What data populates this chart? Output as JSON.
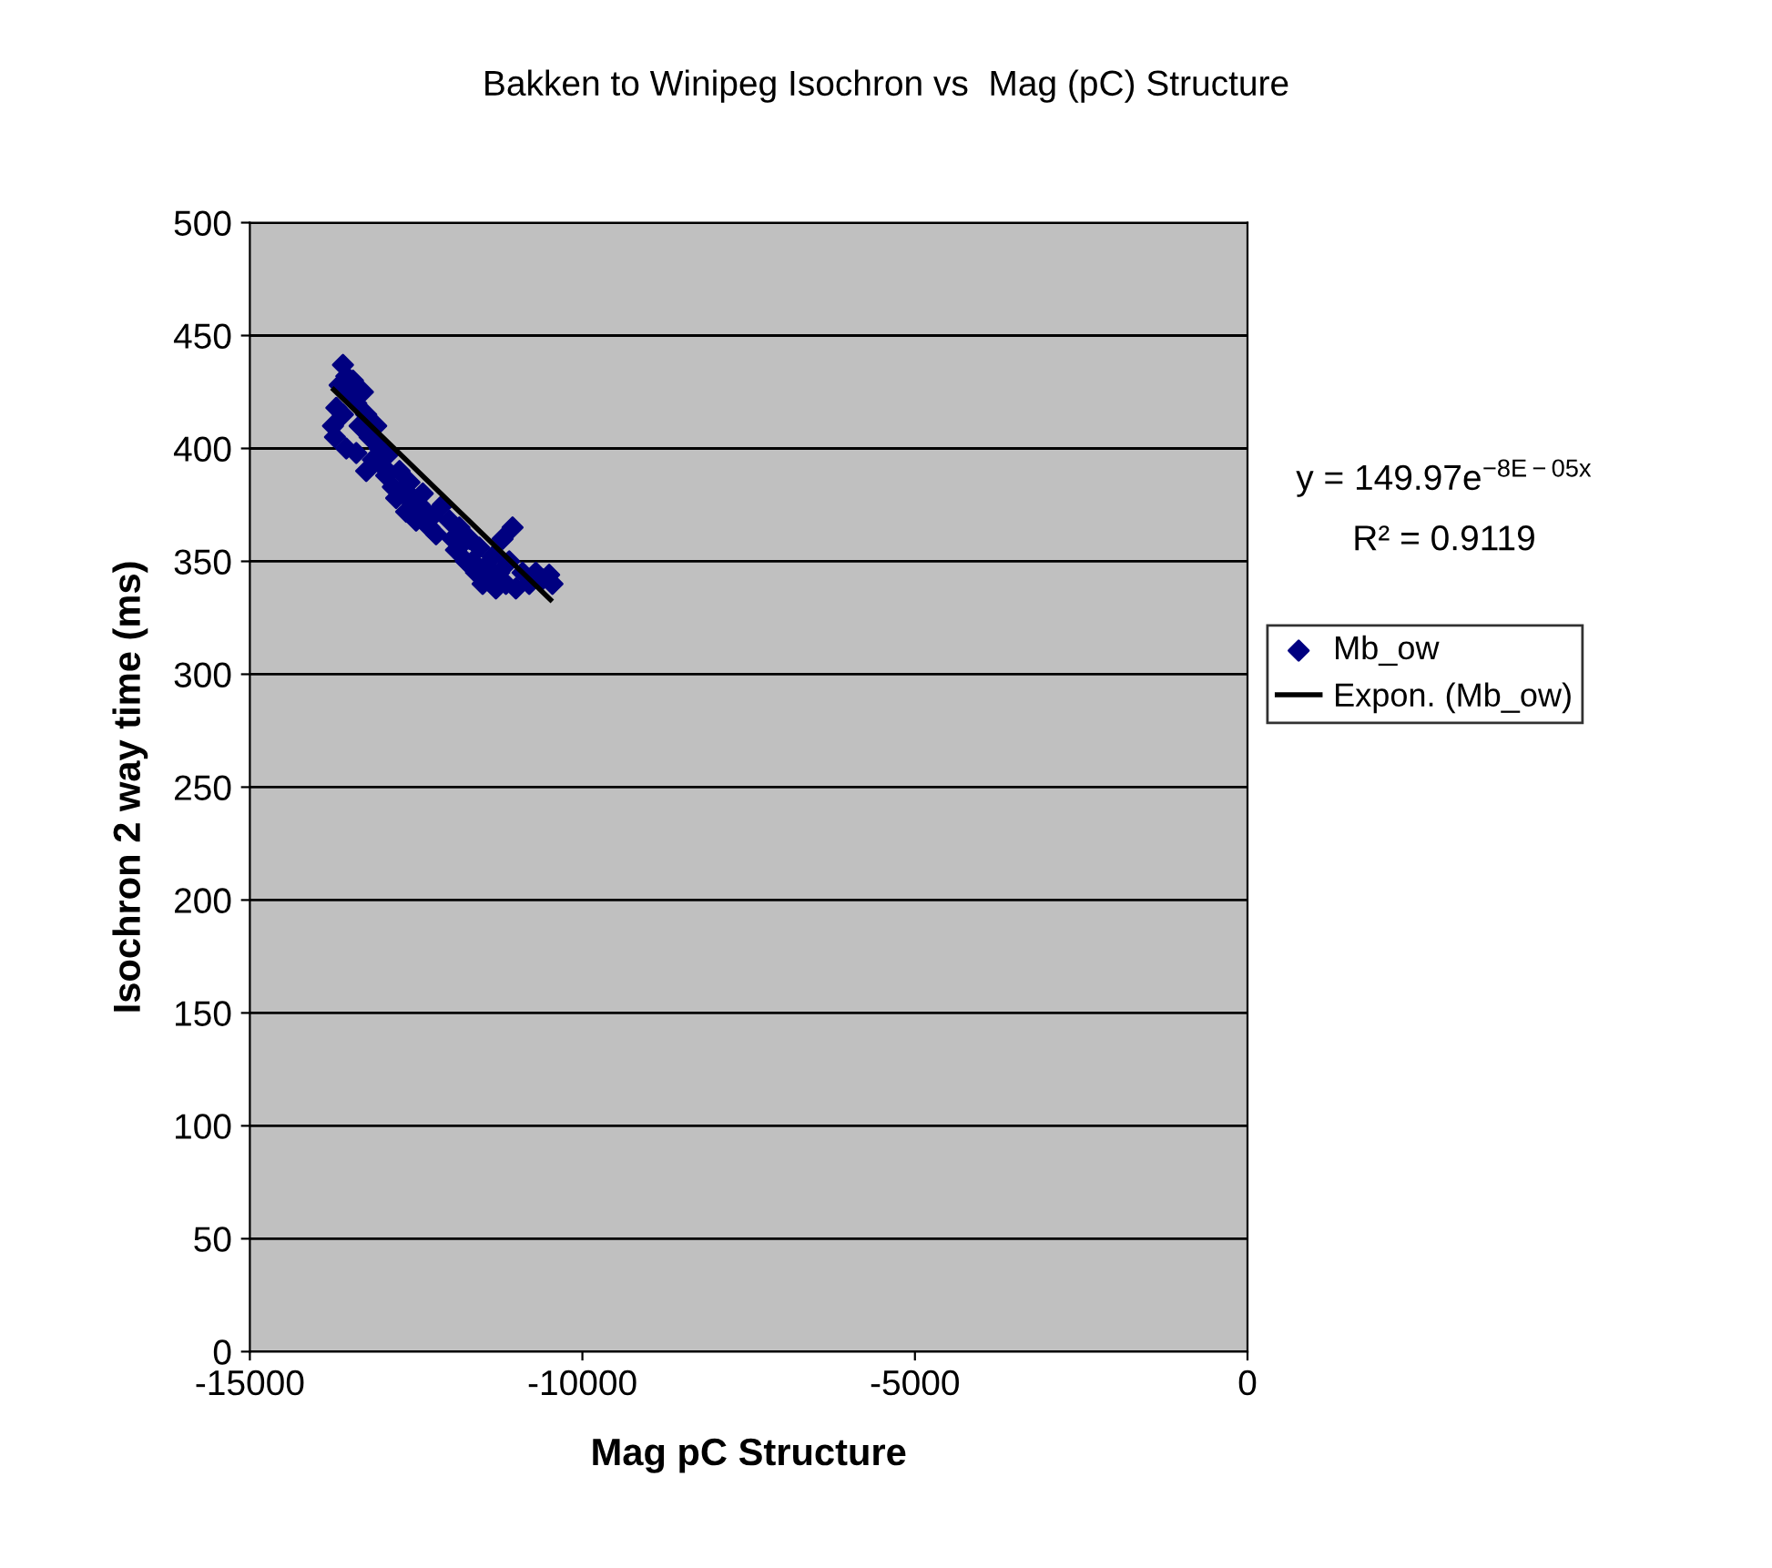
{
  "chart_data": {
    "type": "scatter",
    "title": "Bakken to Winipeg Isochron vs  Mag (pC) Structure",
    "xlabel": "Mag pC Structure",
    "ylabel": "Isochron 2 way time (ms)",
    "xlim": [
      -15000,
      0
    ],
    "xticks": [
      -15000,
      -10000,
      -5000,
      0
    ],
    "ylim": [
      0,
      500
    ],
    "yticks": [
      0,
      50,
      100,
      150,
      200,
      250,
      300,
      350,
      400,
      450,
      500
    ],
    "grid": "y",
    "legend": "right",
    "marker": "diamond",
    "annotations": [
      "y = 149.97e$^{−8E−05x}$",
      "R² = 0.9119"
    ],
    "series": [
      {
        "name": "Mb_ow",
        "color": "#000080",
        "x": [
          -13750,
          -13720,
          -13700,
          -13650,
          -13600,
          -13550,
          -13500,
          -13600,
          -13450,
          -13400,
          -13350,
          -13300,
          -13250,
          -13550,
          -13400,
          -13200,
          -13150,
          -13100,
          -13050,
          -13000,
          -12950,
          -12900,
          -13250,
          -12850,
          -12800,
          -12750,
          -12700,
          -12650,
          -12600,
          -12550,
          -12500,
          -12450,
          -12400,
          -12350,
          -12300,
          -12250,
          -12200,
          -12100,
          -12000,
          -11950,
          -11900,
          -11850,
          -11800,
          -11750,
          -11700,
          -11650,
          -11600,
          -11550,
          -11500,
          -11450,
          -11400,
          -11350,
          -11300,
          -11250,
          -11200,
          -11150,
          -11100,
          -11050,
          -11000,
          -10900,
          -10800,
          -10700,
          -10600,
          -10500,
          -10450
        ],
        "values": [
          410,
          405,
          418,
          428,
          437,
          432,
          425,
          415,
          430,
          420,
          410,
          425,
          415,
          400,
          398,
          405,
          395,
          410,
          400,
          392,
          388,
          398,
          390,
          383,
          378,
          390,
          380,
          372,
          385,
          378,
          368,
          375,
          380,
          372,
          365,
          370,
          362,
          375,
          368,
          360,
          355,
          365,
          358,
          350,
          360,
          350,
          345,
          356,
          340,
          348,
          342,
          352,
          338,
          345,
          360,
          340,
          350,
          365,
          338,
          345,
          340,
          345,
          342,
          344,
          340
        ]
      },
      {
        "name": "Expon. (Mb_ow)",
        "type": "line",
        "color": "#000000",
        "marker": "none",
        "x": [
          -13740,
          -10480
        ],
        "values": [
          426,
          333
        ]
      }
    ]
  }
}
